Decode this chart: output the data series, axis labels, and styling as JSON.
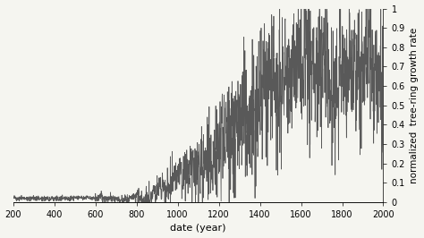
{
  "xlabel": "date (year)",
  "ylabel": "normalized  tree-ring growth rate",
  "xlim": [
    200,
    2000
  ],
  "ylim": [
    0,
    1.0
  ],
  "xticks": [
    200,
    400,
    600,
    800,
    1000,
    1200,
    1400,
    1600,
    1800,
    2000
  ],
  "yticks": [
    0,
    0.1,
    0.2,
    0.3,
    0.4,
    0.5,
    0.6,
    0.7,
    0.8,
    0.9,
    1.0
  ],
  "ytick_labels": [
    "0",
    "0.1",
    "0.2",
    "0.3",
    "0.4",
    "0.5",
    "0.6",
    "0.7",
    "0.8",
    "0.9",
    "1"
  ],
  "line_color": "#595959",
  "background_color": "#f5f5f0",
  "linewidth": 0.55,
  "xlabel_fontsize": 8,
  "ylabel_fontsize": 7.5,
  "tick_fontsize": 7
}
